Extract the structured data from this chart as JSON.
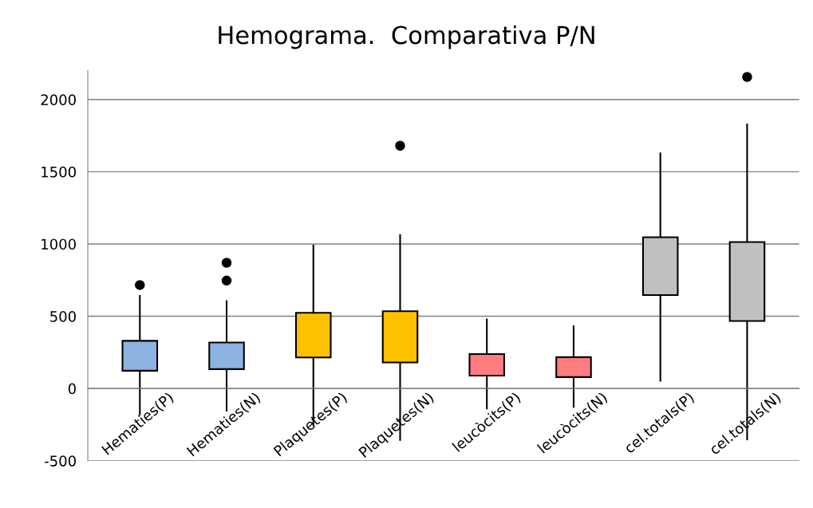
{
  "chart_data": {
    "type": "box",
    "title": "Hemograma.  Comparativa P/N",
    "categories": [
      "Hematies(P)",
      "Hematies(N)",
      "Plaquetes(P)",
      "Plaquetes(N)",
      "leucòcits(P)",
      "leucòcits(N)",
      "cel.totals(P)",
      "cel.totals(N)"
    ],
    "colors": [
      "#8db3e2",
      "#8db3e2",
      "#ffc000",
      "#ffc000",
      "#ff7c80",
      "#ff7c80",
      "#c0c0c0",
      "#c0c0c0"
    ],
    "boxes": [
      {
        "low": -180,
        "q1": 123,
        "q3": 330,
        "high": 641,
        "outliers": [
          716
        ]
      },
      {
        "low": -153,
        "q1": 134,
        "q3": 318,
        "high": 605,
        "outliers": [
          747,
          870
        ]
      },
      {
        "low": -255,
        "q1": 215,
        "q3": 524,
        "high": 990
      },
      {
        "low": -356,
        "q1": 180,
        "q3": 535,
        "high": 1062,
        "outliers": [
          1680
        ]
      },
      {
        "low": -138,
        "q1": 89,
        "q3": 238,
        "high": 478
      },
      {
        "low": -127,
        "q1": 79,
        "q3": 217,
        "high": 431
      },
      {
        "low": 53,
        "q1": 647,
        "q3": 1047,
        "high": 1627
      },
      {
        "low": -352,
        "q1": 467,
        "q3": 1014,
        "high": 1828,
        "outliers": [
          2156
        ]
      }
    ],
    "ylim": [
      -500,
      2200
    ],
    "yticks": [
      -500,
      0,
      500,
      1000,
      1500,
      2000
    ],
    "grid": "y"
  }
}
